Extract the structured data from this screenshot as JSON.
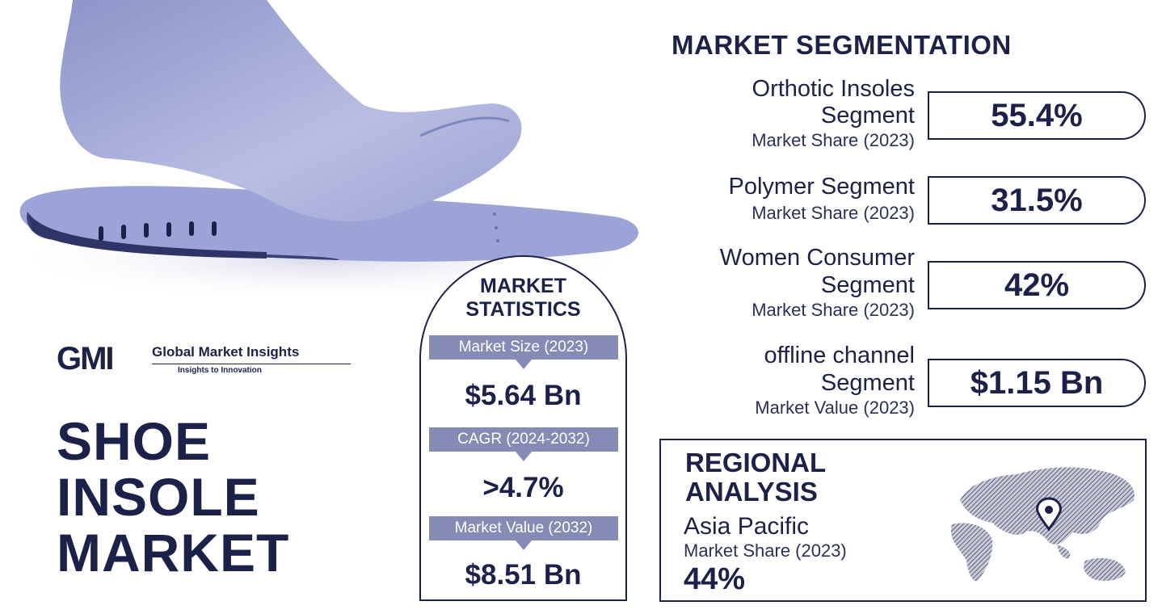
{
  "logo": {
    "mark": "GMI",
    "name": "Global Market Insights",
    "tagline": "Insights to Innovation"
  },
  "title": [
    "SHOE",
    "INSOLE",
    "MARKET"
  ],
  "statistics": {
    "heading": [
      "MARKET",
      "STATISTICS"
    ],
    "items": [
      {
        "label": "Market Size (2023)",
        "value": "$5.64 Bn"
      },
      {
        "label": "CAGR (2024-2032)",
        "value": ">4.7%"
      },
      {
        "label": "Market Value (2032)",
        "value": "$8.51 Bn"
      }
    ]
  },
  "segmentation": {
    "heading": "MARKET SEGMENTATION",
    "items": [
      {
        "name_lines": [
          "Orthotic Insoles",
          "Segment"
        ],
        "sub": "Market Share (2023)",
        "value": "55.4%"
      },
      {
        "name_lines": [
          "Polymer Segment"
        ],
        "sub": "Market Share (2023)",
        "value": "31.5%"
      },
      {
        "name_lines": [
          "Women Consumer",
          "Segment"
        ],
        "sub": "Market Share (2023)",
        "value": "42%"
      },
      {
        "name_lines": [
          "offline channel",
          "Segment"
        ],
        "sub": "Market Value (2023)",
        "value": "$1.15 Bn"
      }
    ]
  },
  "regional": {
    "heading": [
      "REGIONAL",
      "ANALYSIS"
    ],
    "region": "Asia Pacific",
    "sub": "Market Share (2023)",
    "value": "44%"
  },
  "colors": {
    "navy": "#1c2149",
    "label_bg": "#858bb4",
    "insole": "#9aa1d3",
    "foot": "#aab0dc"
  }
}
